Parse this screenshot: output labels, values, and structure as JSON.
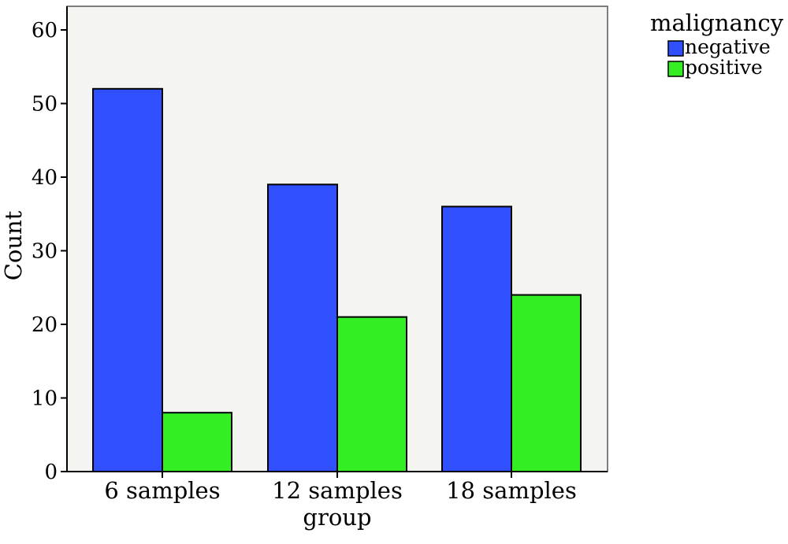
{
  "chart_data": {
    "type": "bar",
    "title": "",
    "xlabel": "group",
    "ylabel": "Count",
    "categories": [
      "6 samples",
      "12 samples",
      "18 samples"
    ],
    "series": [
      {
        "name": "negative",
        "values": [
          52,
          39,
          36
        ],
        "color": "#3050ff"
      },
      {
        "name": "positive",
        "values": [
          8,
          21,
          24
        ],
        "color": "#33ee22"
      }
    ],
    "ylim": [
      0,
      60
    ],
    "yticks": [
      0,
      10,
      20,
      30,
      40,
      50,
      60
    ],
    "legend": {
      "title": "malignancy",
      "position": "top-right"
    },
    "grid": false,
    "plot_background": "#f4f4f0"
  }
}
